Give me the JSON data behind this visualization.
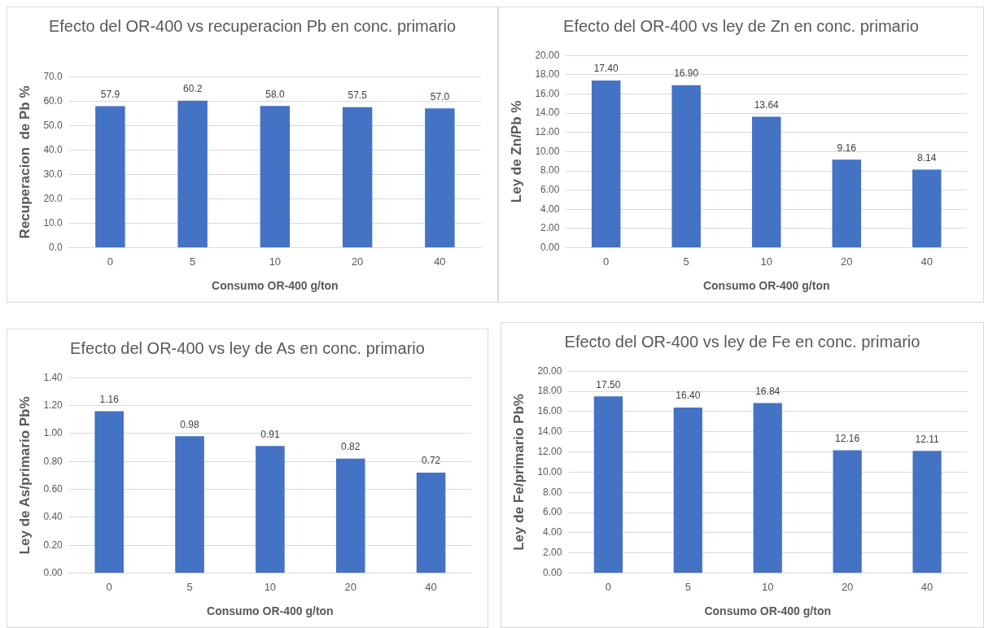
{
  "chart_data": [
    {
      "type": "bar",
      "title": "Efecto del OR-400 vs recuperacion Pb  en  conc. primario",
      "xlabel": "Consumo OR-400 g/ton",
      "ylabel": "Recuperacion  de Pb %",
      "categories": [
        "0",
        "5",
        "10",
        "20",
        "40"
      ],
      "values": [
        57.9,
        60.2,
        58.0,
        57.5,
        57.0
      ],
      "value_labels": [
        "57.9",
        "60.2",
        "58.0",
        "57.5",
        "57.0"
      ],
      "color": "#4472c4",
      "ylim": [
        0,
        70
      ],
      "yticks": [
        {
          "value": 0,
          "label": "0.0"
        },
        {
          "value": 10,
          "label": "10.0"
        },
        {
          "value": 20,
          "label": "20.0"
        },
        {
          "value": 30,
          "label": "30.0"
        },
        {
          "value": 40,
          "label": "40.0"
        },
        {
          "value": 50,
          "label": "50.0"
        },
        {
          "value": 60,
          "label": "60.0"
        },
        {
          "value": 70,
          "label": "70.0"
        }
      ],
      "grid": "y"
    },
    {
      "type": "bar",
      "title": "Efecto del OR-400 vs ley de Zn en conc. primario",
      "xlabel": "Consumo OR-400 g/ton",
      "ylabel": "Ley de Zn/Pb %",
      "categories": [
        "0",
        "5",
        "10",
        "20",
        "40"
      ],
      "values": [
        17.4,
        16.9,
        13.64,
        9.16,
        8.14
      ],
      "value_labels": [
        "17.40",
        "16.90",
        "13.64",
        "9.16",
        "8.14"
      ],
      "color": "#4472c4",
      "ylim": [
        0,
        20
      ],
      "yticks": [
        {
          "value": 0,
          "label": "0.00"
        },
        {
          "value": 2,
          "label": "2.00"
        },
        {
          "value": 4,
          "label": "4.00"
        },
        {
          "value": 6,
          "label": "6.00"
        },
        {
          "value": 8,
          "label": "8.00"
        },
        {
          "value": 10,
          "label": "10.00"
        },
        {
          "value": 12,
          "label": "12.00"
        },
        {
          "value": 14,
          "label": "14.00"
        },
        {
          "value": 16,
          "label": "16.00"
        },
        {
          "value": 18,
          "label": "18.00"
        },
        {
          "value": 20,
          "label": "20.00"
        }
      ],
      "grid": "y"
    },
    {
      "type": "bar",
      "title": "Efecto del OR-400 vs ley de As  en  conc. primario",
      "xlabel": "Consumo OR-400 g/ton",
      "ylabel": "Ley de As/primario Pb%",
      "categories": [
        "0",
        "5",
        "10",
        "20",
        "40"
      ],
      "values": [
        1.16,
        0.98,
        0.91,
        0.82,
        0.72
      ],
      "value_labels": [
        "1.16",
        "0.98",
        "0.91",
        "0.82",
        "0.72"
      ],
      "color": "#4472c4",
      "ylim": [
        0,
        1.4
      ],
      "yticks": [
        {
          "value": 0,
          "label": "0.00"
        },
        {
          "value": 0.2,
          "label": "0.20"
        },
        {
          "value": 0.4,
          "label": "0.40"
        },
        {
          "value": 0.6,
          "label": "0.60"
        },
        {
          "value": 0.8,
          "label": "0.80"
        },
        {
          "value": 1.0,
          "label": "1.00"
        },
        {
          "value": 1.2,
          "label": "1.20"
        },
        {
          "value": 1.4,
          "label": "1.40"
        }
      ],
      "grid": "y"
    },
    {
      "type": "bar",
      "title": "Efecto del OR-400 vs ley de  Fe  en  conc. primario",
      "xlabel": "Consumo OR-400 g/ton",
      "ylabel": "Ley de Fe/primario Pb%",
      "categories": [
        "0",
        "5",
        "10",
        "20",
        "40"
      ],
      "values": [
        17.5,
        16.4,
        16.84,
        12.16,
        12.11
      ],
      "value_labels": [
        "17.50",
        "16.40",
        "16.84",
        "12.16",
        "12.11"
      ],
      "color": "#4472c4",
      "ylim": [
        0,
        20
      ],
      "yticks": [
        {
          "value": 0,
          "label": "0.00"
        },
        {
          "value": 2,
          "label": "2.00"
        },
        {
          "value": 4,
          "label": "4.00"
        },
        {
          "value": 6,
          "label": "6.00"
        },
        {
          "value": 8,
          "label": "8.00"
        },
        {
          "value": 10,
          "label": "10.00"
        },
        {
          "value": 12,
          "label": "12.00"
        },
        {
          "value": 14,
          "label": "14.00"
        },
        {
          "value": 16,
          "label": "16.00"
        },
        {
          "value": 18,
          "label": "18.00"
        },
        {
          "value": 20,
          "label": "20.00"
        }
      ],
      "grid": "y"
    }
  ]
}
